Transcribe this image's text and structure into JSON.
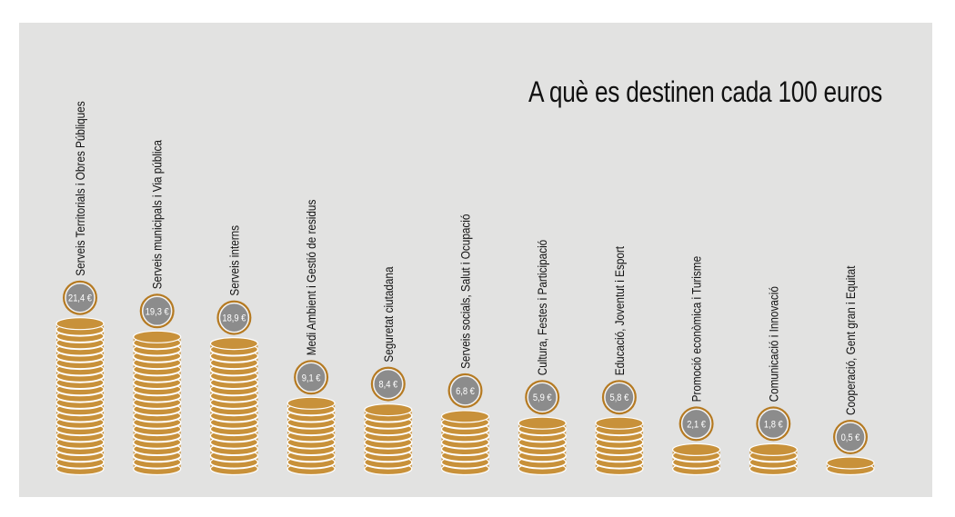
{
  "chart_data": {
    "type": "bar",
    "title": "A què es destinen cada 100 euros",
    "categories": [
      "Serveis Territorials i Obres Públiques",
      "Serveis municipals i Via pública",
      "Serveis interns",
      "Medi Ambient i Gestió de residus",
      "Seguretat ciutadana",
      "Serveis socials, Salut i Ocupació",
      "Cultura, Festes i Participació",
      "Educació, Joventut i Esport",
      "Promoció econòmica i Turisme",
      "Comunicació i Innovació",
      "Cooperació, Gent gran i Equitat"
    ],
    "values": [
      21.4,
      19.3,
      18.9,
      9.1,
      8.4,
      6.8,
      5.9,
      5.8,
      2.1,
      1.8,
      0.5
    ],
    "value_labels": [
      "21,4 €",
      "19,3 €",
      "18,9 €",
      "9,1 €",
      "8,4 €",
      "6,8 €",
      "5,9 €",
      "5,8 €",
      "2,1 €",
      "1,8 €",
      "0,5 €"
    ],
    "coins_per_stack": [
      22,
      20,
      19,
      10,
      9,
      8,
      7,
      7,
      3,
      3,
      1
    ],
    "xlabel": "",
    "ylabel": "",
    "grid": false,
    "legend": "none",
    "colors": {
      "background": "#e2e2e1",
      "coin_fill": "#c8913a",
      "coin_stroke": "#ffffff",
      "badge_fill": "#8c8c8c",
      "badge_ring": "#b57a22",
      "badge_text": "#ffffff",
      "text": "#111111"
    }
  }
}
